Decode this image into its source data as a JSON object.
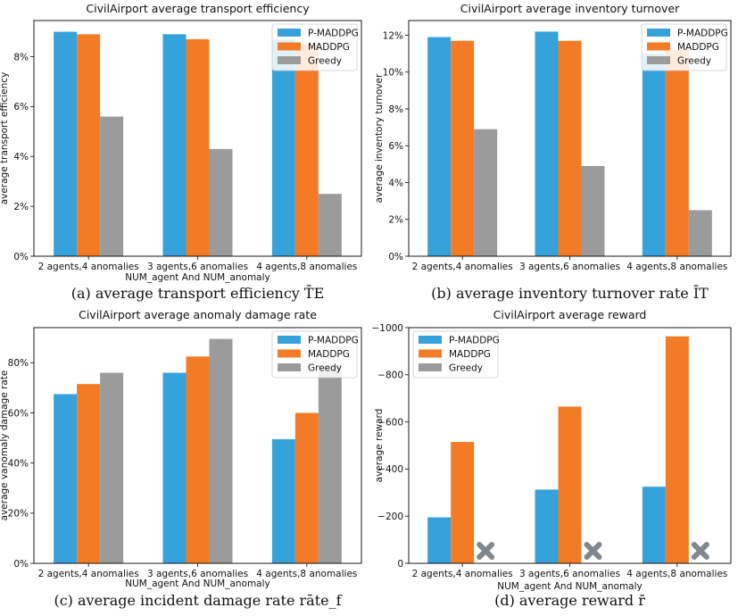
{
  "colors": {
    "P-MADDPG": "#36a2dc",
    "MADDPG": "#f47b26",
    "Greedy": "#9a9b9a",
    "marker": "#7f8890"
  },
  "chart_data": [
    {
      "id": "a",
      "type": "bar",
      "title": "CivilAirport average transport efficiency",
      "xlabel": "NUM_agent And NUM_anomaly",
      "ylabel": "average transport efficiency",
      "caption": "(a) average transport efficiency T̄E",
      "categories": [
        "2 agents,4 anomalies",
        "3 agents,6 anomalies",
        "4 agents,8 anomalies"
      ],
      "series": [
        {
          "name": "P-MADDPG",
          "values": [
            9.0,
            8.9,
            8.7
          ]
        },
        {
          "name": "MADDPG",
          "values": [
            8.9,
            8.7,
            8.5
          ]
        },
        {
          "name": "Greedy",
          "values": [
            5.6,
            4.3,
            2.5
          ]
        }
      ],
      "yticks": [
        0,
        2,
        4,
        6,
        8
      ],
      "ytick_labels": [
        "0%",
        "2%",
        "4%",
        "6%",
        "8%"
      ],
      "ylim": [
        0,
        9.45
      ],
      "legend": "top-right"
    },
    {
      "id": "b",
      "type": "bar",
      "title": "CivilAirport average inventory turnover",
      "xlabel": "",
      "ylabel": "average inventory turnover",
      "caption": "(b) average inventory turnover rate ĪT",
      "categories": [
        "2 agents,4 anomalies",
        "3 agents,6 anomalies",
        "4 agents,8 anomalies"
      ],
      "series": [
        {
          "name": "P-MADDPG",
          "values": [
            11.9,
            12.2,
            11.0
          ]
        },
        {
          "name": "MADDPG",
          "values": [
            11.7,
            11.7,
            11.2
          ]
        },
        {
          "name": "Greedy",
          "values": [
            6.9,
            4.9,
            2.5
          ]
        }
      ],
      "yticks": [
        0,
        2,
        4,
        6,
        8,
        10,
        12
      ],
      "ytick_labels": [
        "0%",
        "2%",
        "4%",
        "6%",
        "8%",
        "10%",
        "12%"
      ],
      "ylim": [
        0,
        12.8
      ],
      "legend": "top-right"
    },
    {
      "id": "c",
      "type": "bar",
      "title": "CivilAirport average anomaly damage rate",
      "xlabel": "NUM_agent And NUM_anomaly",
      "ylabel": "average vanomaly damage rate",
      "caption": "(c) average incident damage rate rāte_f",
      "categories": [
        "2 agents,4 anomalies",
        "3 agents,6 anomalies",
        "4 agents,8 anomalies"
      ],
      "series": [
        {
          "name": "P-MADDPG",
          "values": [
            67.5,
            76,
            49.5
          ]
        },
        {
          "name": "MADDPG",
          "values": [
            71.5,
            82.5,
            60
          ]
        },
        {
          "name": "Greedy",
          "values": [
            76,
            89.5,
            79
          ]
        }
      ],
      "yticks": [
        0,
        20,
        40,
        60,
        80
      ],
      "ytick_labels": [
        "0%",
        "20%",
        "40%",
        "60%",
        "80%"
      ],
      "ylim": [
        0,
        94
      ],
      "legend": "top-right"
    },
    {
      "id": "d",
      "type": "bar",
      "title": "CivilAirport average reward",
      "xlabel": "NUM_agent And NUM_anomaly",
      "ylabel": "average reward",
      "caption": "(d) average reward r̄",
      "categories": [
        "2 agents,4 anomalies",
        "3 agents,6 anomalies",
        "4 agents,8 anomalies"
      ],
      "series": [
        {
          "name": "P-MADDPG",
          "values": [
            -195,
            -313,
            -325
          ]
        },
        {
          "name": "MADDPG",
          "values": [
            -515,
            -665,
            -963
          ]
        },
        {
          "name": "Greedy",
          "values": [
            null,
            null,
            null
          ]
        }
      ],
      "yticks": [
        0,
        -200,
        -400,
        -600,
        -800,
        -1000
      ],
      "ytick_labels": [
        "0",
        "−200",
        "−400",
        "−600",
        "−800",
        "−1000"
      ],
      "ylim": [
        0,
        -1000
      ],
      "inverted_sign": true,
      "missing_marker": "x-marker",
      "legend": "top-left"
    }
  ]
}
